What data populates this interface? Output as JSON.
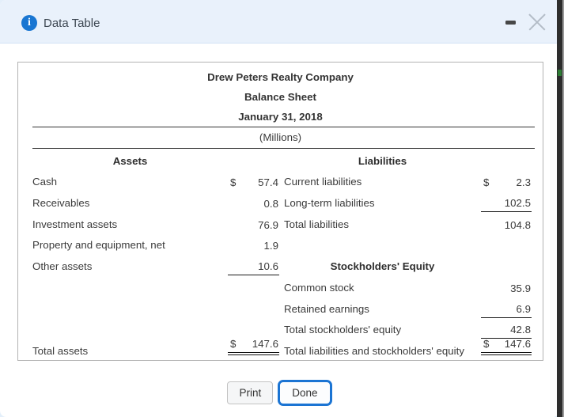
{
  "window": {
    "title": "Data Table"
  },
  "balance_sheet": {
    "company": "Drew Peters Realty Company",
    "statement": "Balance Sheet",
    "date": "January 31, 2018",
    "units": "(Millions)",
    "left_header": "Assets",
    "right_header": "Liabilities",
    "equity_header": "Stockholders' Equity",
    "rows": [
      {
        "left": {
          "label": "Cash",
          "dollar": "$",
          "value": "57.4"
        },
        "right": {
          "label": "Current liabilities",
          "dollar": "$",
          "value": "2.3"
        }
      },
      {
        "left": {
          "label": "Receivables",
          "value": "0.8"
        },
        "right": {
          "label": "Long-term liabilities",
          "value": "102.5"
        }
      },
      {
        "left": {
          "label": "Investment assets",
          "value": "76.9"
        },
        "right": {
          "label": "Total liabilities",
          "value": "104.8"
        }
      },
      {
        "left": {
          "label": "Property and equipment, net",
          "value": "1.9"
        },
        "right": {}
      },
      {
        "left": {
          "label": "Other assets",
          "value": "10.6"
        },
        "right": {}
      },
      {
        "left": {},
        "right": {
          "label": "Common stock",
          "value": "35.9"
        }
      },
      {
        "left": {},
        "right": {
          "label": "Retained earnings",
          "value": "6.9"
        }
      },
      {
        "left": {},
        "right": {
          "label": "Total stockholders' equity",
          "value": "42.8"
        }
      },
      {
        "left": {
          "label": "Total assets",
          "dollar": "$",
          "value": "147.6"
        },
        "right": {
          "label": "Total liabilities and stockholders' equity",
          "dollar": "$",
          "value": "147.6"
        }
      }
    ]
  },
  "buttons": {
    "print": "Print",
    "done": "Done"
  },
  "colors": {
    "accent_blue": "#1b74d3",
    "info_icon_blue": "#1976d2",
    "header_bg": "#e9f1fb",
    "table_border": "#b3b3b3",
    "side_strip": "#2d2d2d",
    "green_mark": "#2e7d35"
  }
}
